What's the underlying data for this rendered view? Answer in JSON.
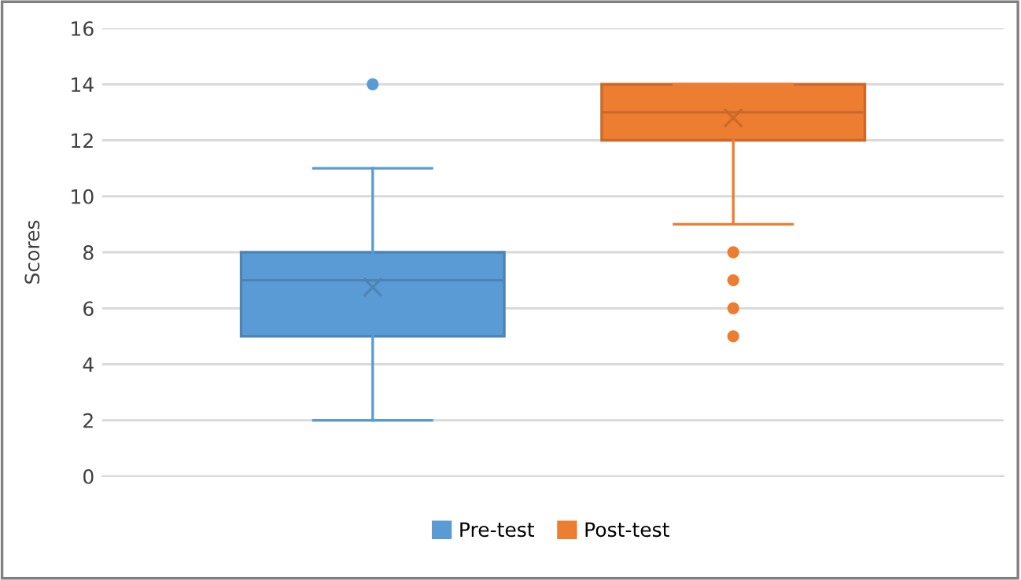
{
  "chart_data": {
    "type": "box",
    "categories": [
      null
    ],
    "ylabel": "Scores",
    "ylim": [
      0,
      16
    ],
    "yticks": [
      0,
      2,
      4,
      6,
      8,
      10,
      12,
      14,
      16
    ],
    "grid": "y",
    "legend": "bottom",
    "series": [
      {
        "name": "Pre-test",
        "color": "#5b9bd5",
        "boxes": [
          {
            "low": 2,
            "q1": 5,
            "median": 7,
            "q3": 8,
            "high": 11,
            "mean": 6.75,
            "outliers": [
              14
            ]
          }
        ]
      },
      {
        "name": "Post-test",
        "color": "#ed7d31",
        "boxes": [
          {
            "low": 9,
            "q1": 12,
            "median": 13,
            "q3": 14,
            "high": 14,
            "mean": 12.8,
            "outliers": [
              8,
              7,
              6,
              5
            ]
          }
        ]
      }
    ]
  }
}
